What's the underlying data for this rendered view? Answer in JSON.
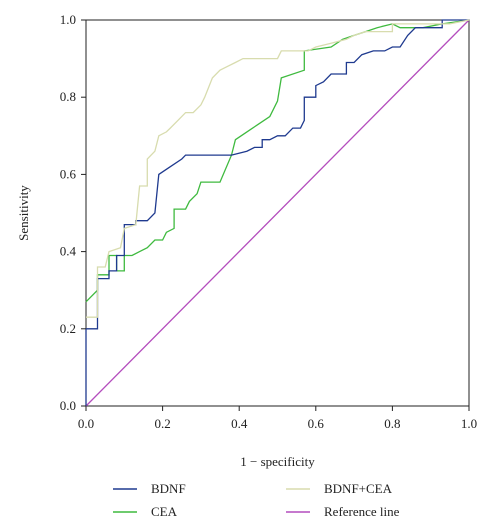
{
  "chart_data": {
    "type": "line",
    "title": "",
    "xlabel": "1 − specificity",
    "ylabel": "Sensitivity",
    "xlim": [
      0,
      1
    ],
    "ylim": [
      0,
      1
    ],
    "xticks": [
      "0.0",
      "0.2",
      "0.4",
      "0.6",
      "0.8",
      "1.0"
    ],
    "yticks": [
      "0.0",
      "0.2",
      "0.4",
      "0.6",
      "0.8",
      "1.0"
    ],
    "grid": false,
    "legend_position": "bottom",
    "series": [
      {
        "name": "BDNF",
        "color": "#1f3a8f",
        "points": [
          [
            0,
            0
          ],
          [
            0,
            0.2
          ],
          [
            0.03,
            0.2
          ],
          [
            0.03,
            0.33
          ],
          [
            0.06,
            0.33
          ],
          [
            0.06,
            0.35
          ],
          [
            0.08,
            0.35
          ],
          [
            0.08,
            0.39
          ],
          [
            0.1,
            0.39
          ],
          [
            0.1,
            0.47
          ],
          [
            0.13,
            0.47
          ],
          [
            0.13,
            0.48
          ],
          [
            0.16,
            0.48
          ],
          [
            0.18,
            0.5
          ],
          [
            0.19,
            0.6
          ],
          [
            0.22,
            0.62
          ],
          [
            0.25,
            0.64
          ],
          [
            0.26,
            0.65
          ],
          [
            0.38,
            0.65
          ],
          [
            0.42,
            0.66
          ],
          [
            0.44,
            0.67
          ],
          [
            0.46,
            0.67
          ],
          [
            0.46,
            0.69
          ],
          [
            0.48,
            0.69
          ],
          [
            0.5,
            0.7
          ],
          [
            0.52,
            0.7
          ],
          [
            0.54,
            0.72
          ],
          [
            0.56,
            0.72
          ],
          [
            0.57,
            0.74
          ],
          [
            0.57,
            0.8
          ],
          [
            0.6,
            0.8
          ],
          [
            0.6,
            0.83
          ],
          [
            0.62,
            0.84
          ],
          [
            0.64,
            0.86
          ],
          [
            0.68,
            0.86
          ],
          [
            0.68,
            0.89
          ],
          [
            0.7,
            0.89
          ],
          [
            0.72,
            0.91
          ],
          [
            0.75,
            0.92
          ],
          [
            0.78,
            0.92
          ],
          [
            0.8,
            0.93
          ],
          [
            0.82,
            0.93
          ],
          [
            0.84,
            0.96
          ],
          [
            0.86,
            0.98
          ],
          [
            0.93,
            0.98
          ],
          [
            0.93,
            1.0
          ],
          [
            1.0,
            1.0
          ]
        ]
      },
      {
        "name": "CEA",
        "color": "#3fba3f",
        "points": [
          [
            0,
            0.27
          ],
          [
            0.03,
            0.3
          ],
          [
            0.03,
            0.34
          ],
          [
            0.06,
            0.34
          ],
          [
            0.06,
            0.39
          ],
          [
            0.08,
            0.39
          ],
          [
            0.08,
            0.35
          ],
          [
            0.1,
            0.35
          ],
          [
            0.1,
            0.39
          ],
          [
            0.12,
            0.39
          ],
          [
            0.14,
            0.4
          ],
          [
            0.16,
            0.41
          ],
          [
            0.18,
            0.43
          ],
          [
            0.2,
            0.43
          ],
          [
            0.21,
            0.45
          ],
          [
            0.23,
            0.46
          ],
          [
            0.23,
            0.51
          ],
          [
            0.26,
            0.51
          ],
          [
            0.27,
            0.53
          ],
          [
            0.29,
            0.55
          ],
          [
            0.3,
            0.58
          ],
          [
            0.35,
            0.58
          ],
          [
            0.38,
            0.65
          ],
          [
            0.39,
            0.69
          ],
          [
            0.42,
            0.71
          ],
          [
            0.45,
            0.73
          ],
          [
            0.48,
            0.75
          ],
          [
            0.5,
            0.79
          ],
          [
            0.51,
            0.85
          ],
          [
            0.57,
            0.87
          ],
          [
            0.57,
            0.92
          ],
          [
            0.64,
            0.93
          ],
          [
            0.67,
            0.95
          ],
          [
            0.7,
            0.96
          ],
          [
            0.73,
            0.97
          ],
          [
            0.76,
            0.98
          ],
          [
            0.8,
            0.99
          ],
          [
            0.82,
            0.98
          ],
          [
            0.88,
            0.98
          ],
          [
            0.93,
            0.99
          ],
          [
            1.0,
            1.0
          ]
        ]
      },
      {
        "name": "BDNF+CEA",
        "color": "#d8dcae",
        "points": [
          [
            0,
            0.23
          ],
          [
            0.03,
            0.23
          ],
          [
            0.03,
            0.36
          ],
          [
            0.05,
            0.36
          ],
          [
            0.06,
            0.4
          ],
          [
            0.09,
            0.41
          ],
          [
            0.1,
            0.46
          ],
          [
            0.13,
            0.47
          ],
          [
            0.14,
            0.57
          ],
          [
            0.16,
            0.57
          ],
          [
            0.16,
            0.64
          ],
          [
            0.18,
            0.66
          ],
          [
            0.19,
            0.7
          ],
          [
            0.21,
            0.71
          ],
          [
            0.22,
            0.72
          ],
          [
            0.24,
            0.74
          ],
          [
            0.26,
            0.76
          ],
          [
            0.28,
            0.76
          ],
          [
            0.3,
            0.78
          ],
          [
            0.31,
            0.8
          ],
          [
            0.33,
            0.85
          ],
          [
            0.35,
            0.87
          ],
          [
            0.37,
            0.88
          ],
          [
            0.39,
            0.89
          ],
          [
            0.41,
            0.9
          ],
          [
            0.5,
            0.9
          ],
          [
            0.51,
            0.92
          ],
          [
            0.58,
            0.92
          ],
          [
            0.6,
            0.93
          ],
          [
            0.64,
            0.94
          ],
          [
            0.68,
            0.95
          ],
          [
            0.7,
            0.96
          ],
          [
            0.73,
            0.97
          ],
          [
            0.8,
            0.97
          ],
          [
            0.8,
            0.99
          ],
          [
            0.9,
            0.99
          ],
          [
            0.95,
            0.99
          ],
          [
            1.0,
            1.0
          ]
        ]
      },
      {
        "name": "Reference line",
        "color": "#b44dbd",
        "points": [
          [
            0,
            0
          ],
          [
            1,
            1
          ]
        ]
      }
    ]
  }
}
